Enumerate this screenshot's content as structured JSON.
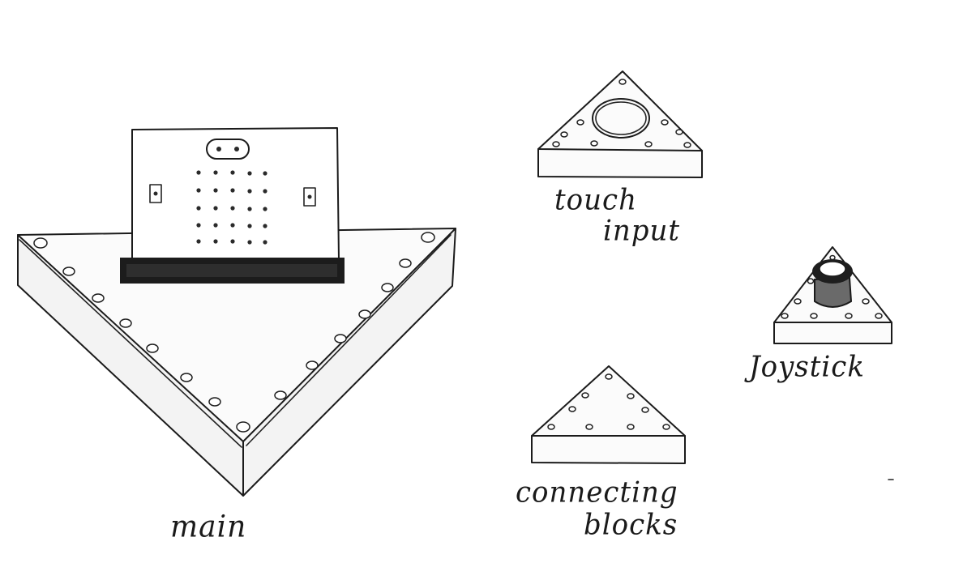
{
  "labels": {
    "main": "main",
    "touch_input": [
      "touch",
      "input"
    ],
    "joystick": "Joystick",
    "connecting_blocks": [
      "connecting",
      "blocks"
    ]
  },
  "icons": {
    "main_base": "triangle-base-with-board-icon",
    "touch_block": "triangle-block-with-touch-pad-icon",
    "joystick_block": "triangle-block-with-joystick-icon",
    "connecting_block": "triangle-connecting-block-icon"
  }
}
